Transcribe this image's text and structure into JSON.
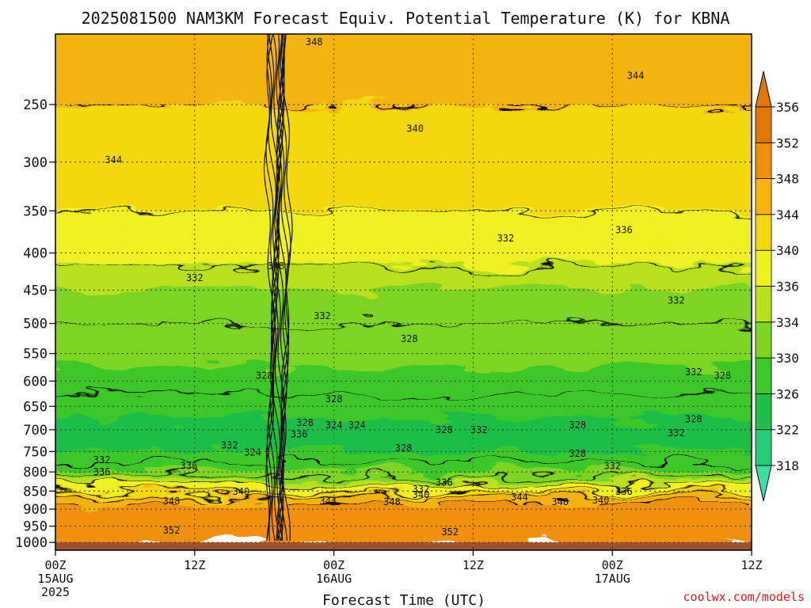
{
  "chart_data": {
    "type": "heatmap",
    "title": "2025081500 NAM3KM Forecast Equiv. Potential Temperature (K) for KBNA",
    "xlabel": "Forecast Time (UTC)",
    "ylabel": "",
    "y_log_pressure": true,
    "y_range_hpa": [
      1025,
      200
    ],
    "y_ticks": [
      250,
      300,
      350,
      400,
      450,
      500,
      550,
      600,
      650,
      700,
      750,
      800,
      850,
      900,
      950,
      1000
    ],
    "y_tick_labels": [
      "250",
      "300",
      "350",
      "400",
      "450",
      "500",
      "550",
      "600",
      "650",
      "700",
      "750",
      "800",
      "850",
      "900",
      "950",
      "1000"
    ],
    "x_range_hours": [
      0,
      60
    ],
    "x_ticks": [
      {
        "hour": 0,
        "label": "00Z",
        "sub1": "15AUG",
        "sub2": "2025"
      },
      {
        "hour": 12,
        "label": "12Z",
        "sub1": "",
        "sub2": ""
      },
      {
        "hour": 24,
        "label": "00Z",
        "sub1": "16AUG",
        "sub2": ""
      },
      {
        "hour": 36,
        "label": "12Z",
        "sub1": "",
        "sub2": ""
      },
      {
        "hour": 48,
        "label": "00Z",
        "sub1": "17AUG",
        "sub2": ""
      },
      {
        "hour": 60,
        "label": "12Z",
        "sub1": "",
        "sub2": ""
      }
    ],
    "grid": true,
    "colorbar": {
      "position": "right",
      "levels": [
        318,
        322,
        326,
        330,
        334,
        336,
        340,
        344,
        348,
        352,
        356
      ],
      "colors": [
        "#3ddfa0",
        "#28cc78",
        "#1fbe4a",
        "#3cc82a",
        "#7ed421",
        "#b8e01c",
        "#f0f020",
        "#f2d80f",
        "#f5b40a",
        "#f09008",
        "#e27508"
      ]
    },
    "profile_hpa": [
      200,
      250,
      300,
      350,
      400,
      450,
      500,
      550,
      600,
      650,
      700,
      750,
      800,
      850,
      875,
      900,
      950,
      1000
    ],
    "profile_k": [
      347,
      344,
      343,
      340,
      337,
      334,
      332,
      331,
      329,
      327,
      325,
      326,
      330,
      339,
      347,
      349,
      350,
      352
    ],
    "contour_labels": [
      {
        "text": "348",
        "hour": 22.3,
        "hpa": 205
      },
      {
        "text": "344",
        "hour": 50.0,
        "hpa": 228
      },
      {
        "text": "340",
        "hour": 31.0,
        "hpa": 270
      },
      {
        "text": "344",
        "hour": 5.0,
        "hpa": 298
      },
      {
        "text": "332",
        "hour": 38.8,
        "hpa": 382
      },
      {
        "text": "336",
        "hour": 49.0,
        "hpa": 372
      },
      {
        "text": "348",
        "hour": 19.0,
        "hpa": 417
      },
      {
        "text": "332",
        "hour": 12.0,
        "hpa": 433
      },
      {
        "text": "332",
        "hour": 53.5,
        "hpa": 465
      },
      {
        "text": "332",
        "hour": 23.0,
        "hpa": 488
      },
      {
        "text": "328",
        "hour": 30.5,
        "hpa": 525
      },
      {
        "text": "328",
        "hour": 18.0,
        "hpa": 590
      },
      {
        "text": "332",
        "hour": 55.0,
        "hpa": 583
      },
      {
        "text": "328",
        "hour": 57.5,
        "hpa": 590
      },
      {
        "text": "328",
        "hour": 24.0,
        "hpa": 635
      },
      {
        "text": "328",
        "hour": 55.0,
        "hpa": 677
      },
      {
        "text": "328",
        "hour": 21.5,
        "hpa": 685
      },
      {
        "text": "324",
        "hour": 24.0,
        "hpa": 690
      },
      {
        "text": "324",
        "hour": 26.0,
        "hpa": 690
      },
      {
        "text": "336",
        "hour": 21.0,
        "hpa": 710
      },
      {
        "text": "328",
        "hour": 33.5,
        "hpa": 700
      },
      {
        "text": "332",
        "hour": 36.5,
        "hpa": 700
      },
      {
        "text": "328",
        "hour": 45.0,
        "hpa": 690
      },
      {
        "text": "332",
        "hour": 53.5,
        "hpa": 707
      },
      {
        "text": "332",
        "hour": 15.0,
        "hpa": 735
      },
      {
        "text": "324",
        "hour": 17.0,
        "hpa": 752
      },
      {
        "text": "328",
        "hour": 30.0,
        "hpa": 742
      },
      {
        "text": "328",
        "hour": 45.0,
        "hpa": 755
      },
      {
        "text": "332",
        "hour": 4.0,
        "hpa": 770
      },
      {
        "text": "336",
        "hour": 11.5,
        "hpa": 785
      },
      {
        "text": "336",
        "hour": 4.0,
        "hpa": 800
      },
      {
        "text": "332",
        "hour": 48.0,
        "hpa": 785
      },
      {
        "text": "336",
        "hour": 33.5,
        "hpa": 827
      },
      {
        "text": "332",
        "hour": 31.5,
        "hpa": 845
      },
      {
        "text": "340",
        "hour": 16.0,
        "hpa": 852
      },
      {
        "text": "340",
        "hour": 31.5,
        "hpa": 860
      },
      {
        "text": "336",
        "hour": 49.0,
        "hpa": 852
      },
      {
        "text": "344",
        "hour": 40.0,
        "hpa": 867
      },
      {
        "text": "340",
        "hour": 47.0,
        "hpa": 875
      },
      {
        "text": "348",
        "hour": 10.0,
        "hpa": 877
      },
      {
        "text": "344",
        "hour": 23.5,
        "hpa": 877
      },
      {
        "text": "348",
        "hour": 29.0,
        "hpa": 880
      },
      {
        "text": "348",
        "hour": 43.5,
        "hpa": 880
      },
      {
        "text": "352",
        "hour": 10.0,
        "hpa": 963
      },
      {
        "text": "352",
        "hour": 34.0,
        "hpa": 968
      }
    ]
  },
  "credit": "coolwx.com/models"
}
